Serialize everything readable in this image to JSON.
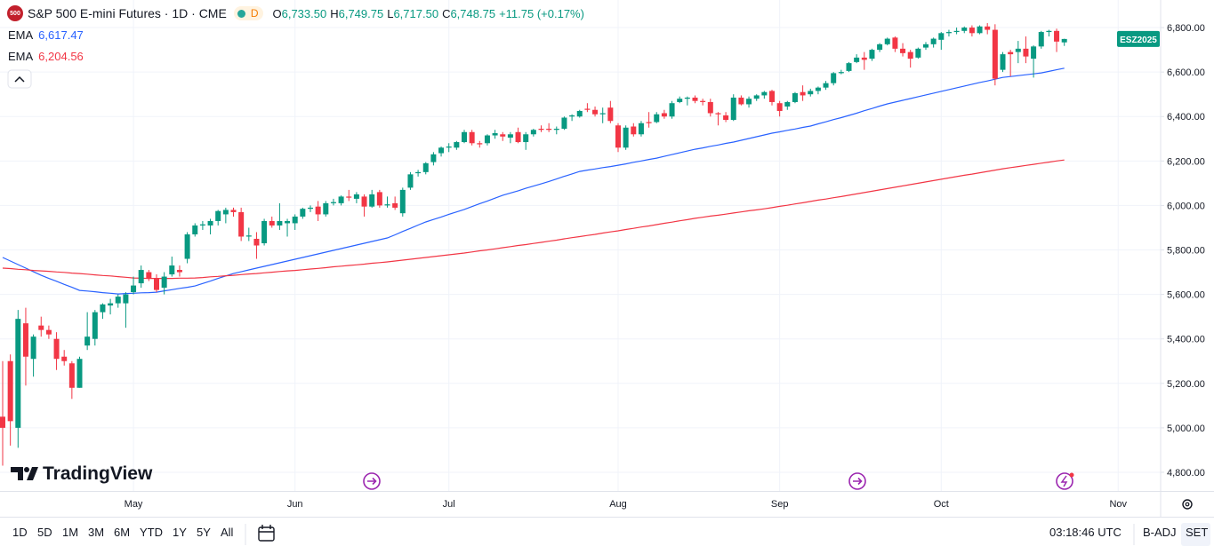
{
  "chart_data": {
    "type": "candlestick",
    "title": "S&P 500 E-mini Futures · 1D · CME",
    "symbol_badge": "500",
    "status_badge": "D",
    "ohlc_readout": [
      {
        "label": "O",
        "value": "6,733.50"
      },
      {
        "label": "H",
        "value": "6,749.75"
      },
      {
        "label": "L",
        "value": "6,717.50"
      },
      {
        "label": "C",
        "value": "6,748.75"
      }
    ],
    "change": "+11.75 (+0.17%)",
    "symbol_tag": "ESZ2025",
    "up_color": "#089981",
    "down_color": "#f23645",
    "grid": true,
    "categories": [
      null,
      null,
      null,
      null,
      null,
      null,
      null,
      null,
      null,
      null,
      null,
      null,
      null,
      null,
      null,
      null,
      null,
      "May",
      null,
      null,
      null,
      null,
      null,
      null,
      null,
      null,
      null,
      null,
      null,
      null,
      null,
      null,
      null,
      null,
      null,
      null,
      null,
      null,
      "Jun",
      null,
      null,
      null,
      null,
      null,
      null,
      null,
      null,
      null,
      null,
      null,
      null,
      null,
      null,
      null,
      null,
      null,
      null,
      null,
      "Jul",
      null,
      null,
      null,
      null,
      null,
      null,
      null,
      null,
      null,
      null,
      null,
      null,
      null,
      null,
      null,
      null,
      null,
      null,
      null,
      null,
      null,
      "Aug",
      null,
      null,
      null,
      null,
      null,
      null,
      null,
      null,
      null,
      null,
      null,
      null,
      null,
      null,
      null,
      null,
      null,
      null,
      null,
      null,
      "Sep",
      null,
      null,
      null,
      null,
      null,
      null,
      null,
      null,
      null,
      null,
      null,
      null,
      null,
      null,
      null,
      null,
      null,
      null,
      null,
      null,
      "Oct",
      null,
      null,
      null,
      null,
      null,
      null,
      null,
      null,
      null,
      null,
      null,
      null,
      null,
      null,
      null,
      null,
      null,
      null,
      null,
      null,
      null,
      null,
      "Nov"
    ],
    "open": [
      5050,
      5300,
      5000,
      5470,
      5310,
      5460,
      5440,
      5400,
      5320,
      5290,
      5180,
      5370,
      5400,
      5520,
      5550,
      5560,
      5560,
      5610,
      5650,
      5700,
      5670,
      5630,
      5690,
      5710,
      5760,
      5870,
      5910,
      5910,
      5930,
      5960,
      5980,
      5970,
      5860,
      5850,
      5830,
      5930,
      5910,
      5920,
      5920,
      5950,
      5985,
      5995,
      5960,
      6010,
      6010,
      6040,
      6030,
      6040,
      5995,
      6060,
      6000,
      6010,
      5965,
      6080,
      6145,
      6150,
      6195,
      6235,
      6260,
      6260,
      6285,
      6330,
      6280,
      6280,
      6315,
      6320,
      6305,
      6330,
      6285,
      6320,
      6345,
      6345,
      6340,
      6345,
      6400,
      6400,
      6435,
      6430,
      6410,
      6440,
      6360,
      6260,
      6355,
      6320,
      6375,
      6375,
      6415,
      6400,
      6465,
      6480,
      6485,
      6470,
      6465,
      6415,
      6405,
      6385,
      6485,
      6455,
      6480,
      6495,
      6515,
      6460,
      6445,
      6465,
      6510,
      6500,
      6515,
      6530,
      6550,
      6595,
      6605,
      6645,
      6665,
      6660,
      6700,
      6725,
      6755,
      6705,
      6690,
      6665,
      6710,
      6725,
      6745,
      6775,
      6780,
      6785,
      6800,
      6775,
      6805,
      6790,
      6610,
      6690,
      6690,
      6705,
      6660,
      6715,
      6780,
      6785,
      6733.5,
      null,
      null,
      null,
      null,
      null,
      null,
      null
    ],
    "high": [
      5300,
      5330,
      5530,
      5540,
      5420,
      5500,
      5460,
      5430,
      5350,
      5300,
      5320,
      5520,
      5530,
      5560,
      5580,
      5600,
      5610,
      5680,
      5730,
      5710,
      5690,
      5700,
      5770,
      5730,
      5880,
      5920,
      5930,
      5940,
      5980,
      5990,
      5990,
      5990,
      5900,
      5880,
      5940,
      5950,
      6010,
      5940,
      5960,
      5990,
      6000,
      6020,
      6020,
      6030,
      6045,
      6070,
      6060,
      6050,
      6070,
      6070,
      6040,
      6040,
      6080,
      6150,
      6160,
      6195,
      6240,
      6265,
      6280,
      6290,
      6340,
      6340,
      6290,
      6320,
      6340,
      6330,
      6330,
      6350,
      6330,
      6345,
      6360,
      6370,
      6355,
      6400,
      6410,
      6430,
      6460,
      6445,
      6440,
      6470,
      6370,
      6360,
      6370,
      6380,
      6420,
      6420,
      6430,
      6470,
      6490,
      6490,
      6495,
      6480,
      6480,
      6420,
      6420,
      6500,
      6495,
      6490,
      6500,
      6515,
      6520,
      6470,
      6470,
      6510,
      6540,
      6525,
      6535,
      6560,
      6600,
      6610,
      6645,
      6680,
      6690,
      6705,
      6730,
      6755,
      6760,
      6730,
      6700,
      6710,
      6735,
      6755,
      6780,
      6790,
      6800,
      6805,
      6810,
      6810,
      6820,
      6815,
      6690,
      6700,
      6740,
      6760,
      6720,
      6785,
      6790,
      6795,
      6749.75,
      null,
      null,
      null,
      null,
      null,
      null,
      null
    ],
    "low": [
      4830,
      4920,
      4910,
      5190,
      5230,
      5410,
      5400,
      5260,
      5280,
      5130,
      5180,
      5350,
      5370,
      5490,
      5510,
      5540,
      5450,
      5600,
      5630,
      5660,
      5610,
      5600,
      5680,
      5680,
      5740,
      5860,
      5890,
      5870,
      5910,
      5920,
      5950,
      5840,
      5840,
      5760,
      5820,
      5900,
      5890,
      5860,
      5890,
      5940,
      5970,
      5930,
      5950,
      6000,
      6000,
      6020,
      6010,
      5950,
      5990,
      5990,
      5990,
      5980,
      5950,
      6070,
      6130,
      6140,
      6180,
      6220,
      6240,
      6250,
      6280,
      6270,
      6260,
      6270,
      6300,
      6290,
      6280,
      6280,
      6250,
      6310,
      6330,
      6330,
      6320,
      6340,
      6380,
      6395,
      6420,
      6400,
      6370,
      6370,
      6240,
      6250,
      6310,
      6310,
      6350,
      6370,
      6390,
      6390,
      6460,
      6450,
      6460,
      6450,
      6400,
      6360,
      6375,
      6380,
      6450,
      6440,
      6470,
      6480,
      6450,
      6400,
      6430,
      6460,
      6470,
      6490,
      6500,
      6520,
      6540,
      6590,
      6600,
      6640,
      6610,
      6650,
      6690,
      6720,
      6690,
      6670,
      6620,
      6660,
      6700,
      6710,
      6700,
      6760,
      6770,
      6775,
      6760,
      6770,
      6770,
      6540,
      6600,
      6580,
      6640,
      6640,
      6575,
      6705,
      6760,
      6690,
      6717.5,
      null,
      null,
      null,
      null,
      null,
      null,
      null
    ],
    "close": [
      5000,
      5030,
      5490,
      5320,
      5410,
      5440,
      5420,
      5310,
      5300,
      5180,
      5310,
      5410,
      5520,
      5555,
      5560,
      5590,
      5600,
      5640,
      5710,
      5670,
      5620,
      5680,
      5730,
      5700,
      5870,
      5910,
      5915,
      5930,
      5975,
      5980,
      5970,
      5860,
      5865,
      5820,
      5930,
      5910,
      5930,
      5930,
      5950,
      5985,
      5990,
      5960,
      6010,
      6015,
      6040,
      6035,
      6050,
      5995,
      6050,
      6000,
      6005,
      5990,
      6070,
      6140,
      6150,
      6190,
      6230,
      6260,
      6265,
      6285,
      6330,
      6280,
      6275,
      6315,
      6325,
      6310,
      6320,
      6285,
      6320,
      6340,
      6340,
      6340,
      6345,
      6395,
      6405,
      6425,
      6430,
      6410,
      6415,
      6380,
      6260,
      6350,
      6320,
      6370,
      6370,
      6410,
      6400,
      6460,
      6480,
      6485,
      6470,
      6465,
      6415,
      6410,
      6385,
      6485,
      6455,
      6480,
      6495,
      6510,
      6465,
      6425,
      6465,
      6505,
      6495,
      6515,
      6530,
      6550,
      6595,
      6600,
      6640,
      6665,
      6655,
      6700,
      6725,
      6750,
      6705,
      6685,
      6660,
      6705,
      6725,
      6750,
      6775,
      6780,
      6785,
      6800,
      6775,
      6805,
      6790,
      6570,
      6680,
      6680,
      6705,
      6670,
      6715,
      6780,
      6785,
      6737,
      6748.75,
      null,
      null,
      null,
      null,
      null,
      null,
      null
    ],
    "series": [
      {
        "name": "EMA",
        "value_label": "6,617.47",
        "color": "#2962ff",
        "values": [
          5766,
          5750,
          5734,
          5718,
          5702,
          5686,
          5672,
          5659,
          5645,
          5632,
          5618,
          5615,
          5612,
          5608,
          5605,
          5602,
          5604,
          5605,
          5607,
          5608,
          5610,
          5616,
          5621,
          5627,
          5632,
          5638,
          5649,
          5660,
          5672,
          5683,
          5694,
          5702,
          5710,
          5718,
          5726,
          5734,
          5742,
          5750,
          5758,
          5766,
          5774,
          5782,
          5790,
          5798,
          5806,
          5814,
          5822,
          5830,
          5838,
          5846,
          5854,
          5868,
          5883,
          5897,
          5912,
          5926,
          5937,
          5948,
          5960,
          5971,
          5982,
          5995,
          6008,
          6020,
          6033,
          6046,
          6056,
          6066,
          6077,
          6087,
          6097,
          6108,
          6119,
          6131,
          6142,
          6153,
          6159,
          6164,
          6170,
          6175,
          6181,
          6187,
          6194,
          6200,
          6207,
          6213,
          6221,
          6229,
          6237,
          6245,
          6253,
          6259,
          6266,
          6272,
          6279,
          6285,
          6293,
          6301,
          6309,
          6317,
          6325,
          6331,
          6338,
          6344,
          6351,
          6357,
          6367,
          6376,
          6386,
          6395,
          6405,
          6415,
          6426,
          6436,
          6447,
          6457,
          6465,
          6473,
          6481,
          6489,
          6497,
          6505,
          6513,
          6521,
          6529,
          6537,
          6545,
          6553,
          6560,
          6568,
          6576,
          6580,
          6584,
          6588,
          6592,
          6596,
          6603,
          6610,
          6617.47,
          null,
          null,
          null,
          null,
          null,
          null,
          null
        ]
      },
      {
        "name": "EMA",
        "value_label": "6,204.56",
        "color": "#f23645",
        "values": [
          5718,
          5716,
          5713,
          5711,
          5708,
          5706,
          5704,
          5701,
          5699,
          5696,
          5694,
          5691,
          5688,
          5685,
          5683,
          5680,
          5677,
          5674,
          5673,
          5672,
          5672,
          5672,
          5672,
          5673,
          5673,
          5674,
          5676,
          5679,
          5681,
          5684,
          5686,
          5689,
          5692,
          5694,
          5697,
          5700,
          5703,
          5706,
          5708,
          5711,
          5714,
          5717,
          5720,
          5724,
          5727,
          5730,
          5733,
          5736,
          5740,
          5743,
          5746,
          5750,
          5754,
          5758,
          5762,
          5766,
          5770,
          5774,
          5778,
          5782,
          5786,
          5791,
          5796,
          5800,
          5805,
          5810,
          5815,
          5820,
          5824,
          5829,
          5834,
          5839,
          5844,
          5850,
          5855,
          5860,
          5865,
          5870,
          5876,
          5881,
          5886,
          5892,
          5897,
          5903,
          5908,
          5914,
          5920,
          5925,
          5931,
          5936,
          5942,
          5947,
          5952,
          5956,
          5961,
          5966,
          5971,
          5976,
          5980,
          5985,
          5990,
          5996,
          6001,
          6007,
          6012,
          6018,
          6024,
          6029,
          6035,
          6040,
          6046,
          6052,
          6058,
          6064,
          6070,
          6076,
          6082,
          6088,
          6094,
          6100,
          6106,
          6112,
          6118,
          6124,
          6130,
          6136,
          6141,
          6147,
          6153,
          6159,
          6165,
          6170,
          6175,
          6180,
          6185,
          6190,
          6195,
          6200,
          6204.56,
          null,
          null,
          null,
          null,
          null,
          null,
          null
        ]
      }
    ],
    "ylim": [
      4716,
      6924
    ],
    "yticks": [
      {
        "value": 4800,
        "label": "4,800.00"
      },
      {
        "value": 5000,
        "label": "5,000.00"
      },
      {
        "value": 5200,
        "label": "5,200.00"
      },
      {
        "value": 5400,
        "label": "5,400.00"
      },
      {
        "value": 5600,
        "label": "5,600.00"
      },
      {
        "value": 5800,
        "label": "5,800.00"
      },
      {
        "value": 6000,
        "label": "6,000.00"
      },
      {
        "value": 6200,
        "label": "6,200.00"
      },
      {
        "value": 6400,
        "label": "6,400.00"
      },
      {
        "value": 6600,
        "label": "6,600.00"
      },
      {
        "value": 6800,
        "label": "6,800.00"
      }
    ]
  },
  "ui": {
    "logo": "TradingView",
    "ranges": [
      "1D",
      "5D",
      "1M",
      "3M",
      "6M",
      "YTD",
      "1Y",
      "5Y",
      "All"
    ],
    "clock": "03:18:46 UTC",
    "adjust": "B-ADJ",
    "session": "SET"
  }
}
